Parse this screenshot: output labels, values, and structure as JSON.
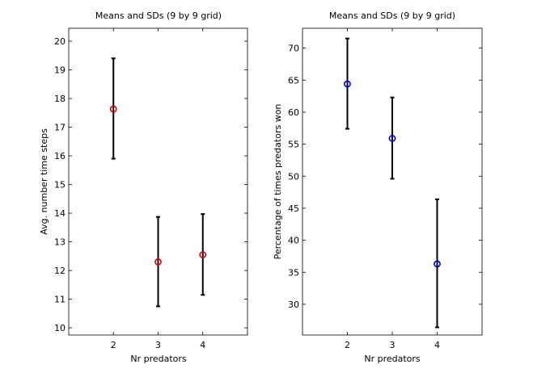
{
  "chart_data": [
    {
      "type": "errorbar",
      "title": "Means and SDs (9 by 9 grid)",
      "xlabel": "Nr predators",
      "ylabel": "Avg. number time steps",
      "xlim": [
        1,
        5
      ],
      "ylim": [
        9.75,
        20.45
      ],
      "x_ticks": [
        2,
        3,
        4
      ],
      "y_ticks": [
        10,
        11,
        12,
        13,
        14,
        15,
        16,
        17,
        18,
        19,
        20
      ],
      "grid": false,
      "marker": "circle",
      "marker_color": "#d40000",
      "errorbar_color": "#000000",
      "series": [
        {
          "x": [
            2,
            3,
            4
          ],
          "mean": [
            17.63,
            12.3,
            12.55
          ],
          "lower": [
            15.9,
            10.75,
            11.15
          ],
          "upper": [
            19.4,
            13.87,
            13.97
          ]
        }
      ]
    },
    {
      "type": "errorbar",
      "title": "Means and SDs (9 by 9 grid)",
      "xlabel": "Nr predators",
      "ylabel": "Percentage of times predators won",
      "xlim": [
        1,
        5
      ],
      "ylim": [
        25.2,
        73.1
      ],
      "x_ticks": [
        2,
        3,
        4
      ],
      "y_ticks": [
        30,
        35,
        40,
        45,
        50,
        55,
        60,
        65,
        70
      ],
      "grid": false,
      "marker": "circle",
      "marker_color": "#0000cc",
      "errorbar_color": "#000000",
      "series": [
        {
          "x": [
            2,
            3,
            4
          ],
          "mean": [
            64.4,
            55.9,
            36.3
          ],
          "lower": [
            57.4,
            49.6,
            26.4
          ],
          "upper": [
            71.5,
            62.3,
            46.4
          ]
        }
      ]
    }
  ]
}
